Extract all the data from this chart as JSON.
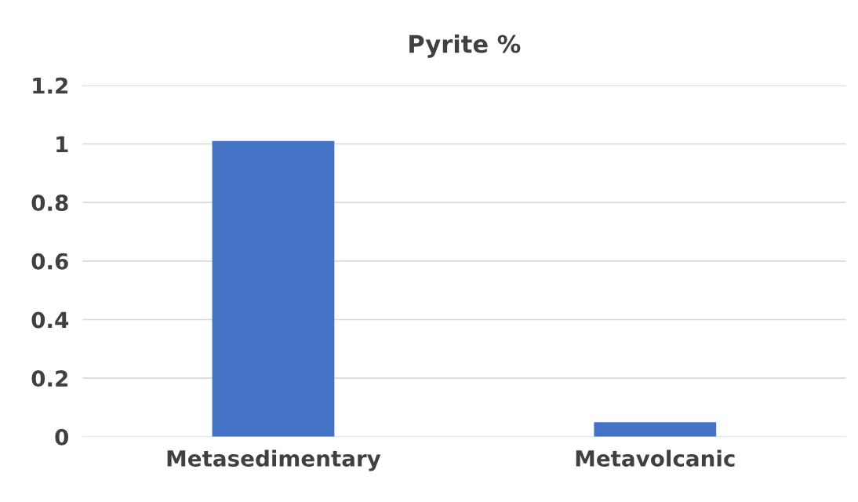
{
  "chart_data": {
    "type": "bar",
    "title": "Pyrite %",
    "categories": [
      "Metasedimentary",
      "Metavolcanic"
    ],
    "values": [
      1.01,
      0.05
    ],
    "color": "#4472c4",
    "ylim": [
      0,
      1.2
    ],
    "yticks": [
      0,
      0.2,
      0.4,
      0.6,
      0.8,
      1,
      1.2
    ],
    "grid": "y"
  }
}
